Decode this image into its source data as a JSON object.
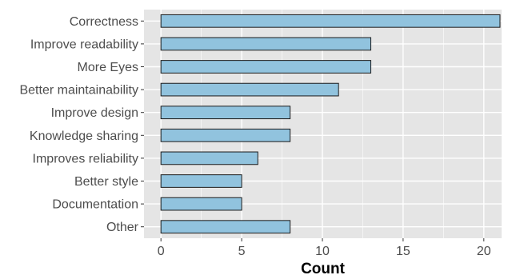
{
  "chart_data": {
    "type": "bar",
    "orientation": "horizontal",
    "title": "",
    "xlabel": "Count",
    "ylabel": "",
    "categories": [
      "Correctness",
      "Improve readability",
      "More Eyes",
      "Better maintainability",
      "Improve design",
      "Knowledge sharing",
      "Improves reliability",
      "Better style",
      "Documentation",
      "Other"
    ],
    "values": [
      21,
      13,
      13,
      11,
      8,
      8,
      6,
      5,
      5,
      8
    ],
    "xlim": [
      -1.05,
      21.1
    ],
    "x_ticks": [
      0,
      5,
      10,
      15,
      20
    ],
    "grid": true,
    "legend": "none",
    "colors": {
      "bar_fill": "#91c3de",
      "bar_stroke": "#1a1a1a",
      "panel_bg": "#e5e5e5",
      "grid_major": "#ffffff"
    }
  }
}
